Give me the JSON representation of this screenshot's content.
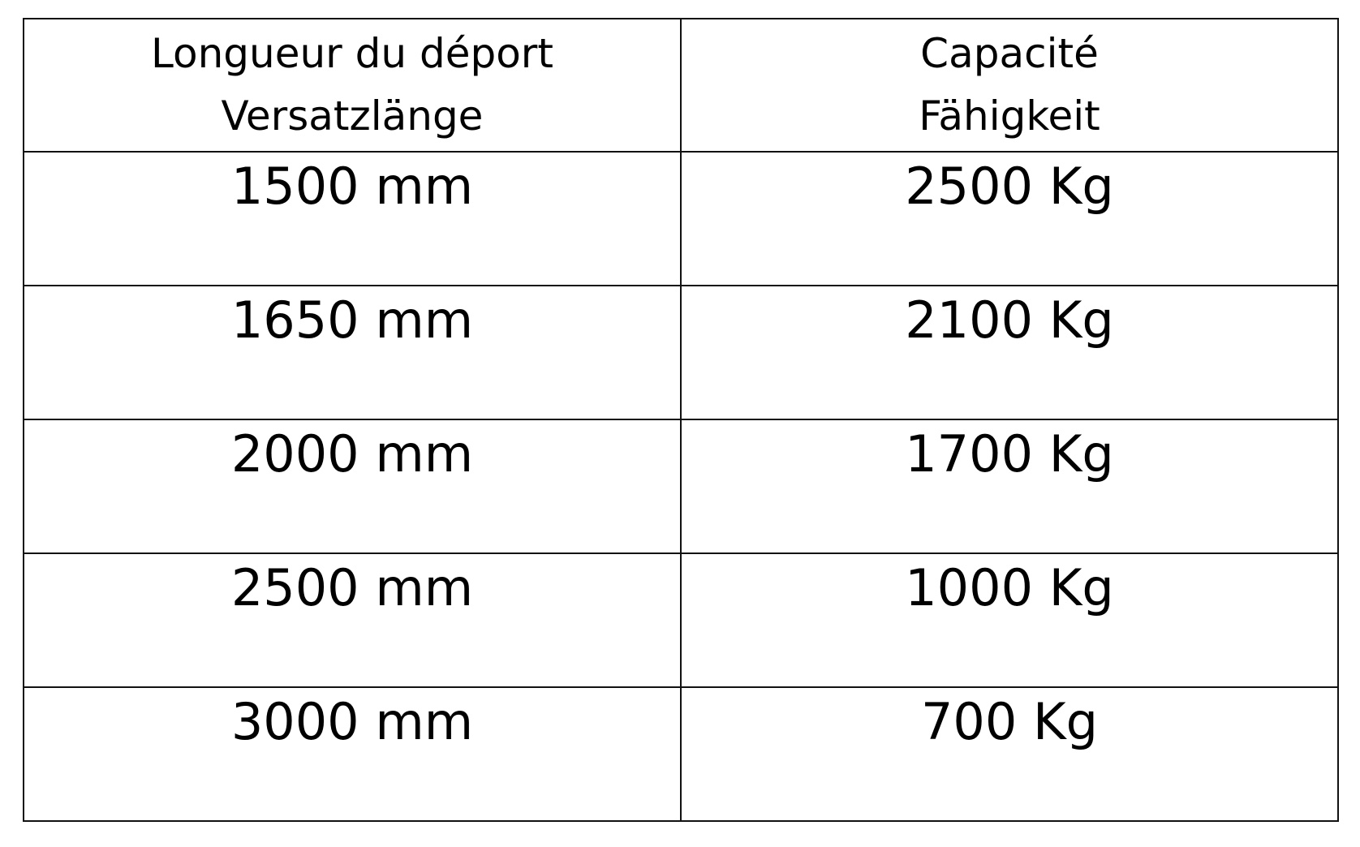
{
  "table": {
    "headers": [
      {
        "line1": "Longueur du déport",
        "line2": "Versatzlänge"
      },
      {
        "line1": "Capacité",
        "line2": "Fähigkeit"
      }
    ],
    "rows": [
      {
        "length": "1500 mm",
        "capacity": "2500 Kg"
      },
      {
        "length": "1650 mm",
        "capacity": "2100 Kg"
      },
      {
        "length": "2000 mm",
        "capacity": "1700 Kg"
      },
      {
        "length": "2500 mm",
        "capacity": "1000 Kg"
      },
      {
        "length": "3000 mm",
        "capacity": "700 Kg"
      }
    ]
  }
}
